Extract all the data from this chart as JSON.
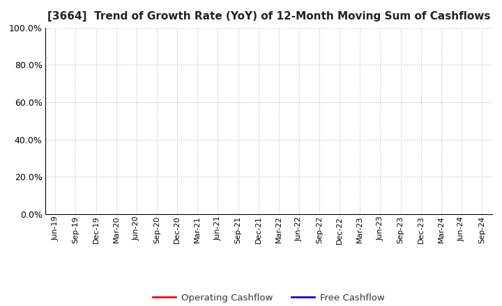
{
  "title": "[3664]  Trend of Growth Rate (YoY) of 12-Month Moving Sum of Cashflows",
  "title_fontsize": 11,
  "ylim": [
    0.0,
    1.0
  ],
  "yticks": [
    0.0,
    0.2,
    0.4,
    0.6,
    0.8,
    1.0
  ],
  "xtick_labels": [
    "Jun-19",
    "Sep-19",
    "Dec-19",
    "Mar-20",
    "Jun-20",
    "Sep-20",
    "Dec-20",
    "Mar-21",
    "Jun-21",
    "Sep-21",
    "Dec-21",
    "Mar-22",
    "Jun-22",
    "Sep-22",
    "Dec-22",
    "Mar-23",
    "Jun-23",
    "Sep-23",
    "Dec-23",
    "Mar-24",
    "Jun-24",
    "Sep-24"
  ],
  "grid_color": "#bbbbbb",
  "background_color": "#ffffff",
  "legend_entries": [
    {
      "label": "Operating Cashflow",
      "color": "#ff0000",
      "linestyle": "-"
    },
    {
      "label": "Free Cashflow",
      "color": "#0000ff",
      "linestyle": "-"
    }
  ],
  "spine_color": "#000000",
  "tick_fontsize": 8,
  "ytick_fontsize": 9,
  "legend_fontsize": 9.5
}
